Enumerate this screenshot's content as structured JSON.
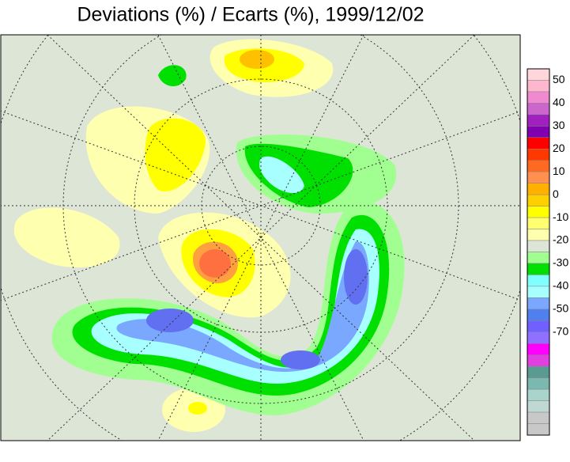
{
  "header": {
    "title": "Deviations (%) / Ecarts (%), 1999/12/02"
  },
  "colorbar": {
    "ticks": [
      50,
      40,
      30,
      20,
      10,
      0,
      -10,
      -20,
      -30,
      -40,
      -50,
      -70
    ],
    "colors": [
      "#ffd6dc",
      "#ffb6cf",
      "#f08ad0",
      "#cc66cc",
      "#a020c0",
      "#8000b0",
      "#ff0000",
      "#ff3800",
      "#ff6a20",
      "#ff9050",
      "#ffb000",
      "#ffd000",
      "#ffff00",
      "#ffff70",
      "#ffffb0",
      "#dde5d6",
      "#a0ff90",
      "#00e000",
      "#80ffff",
      "#a8ffff",
      "#7aa8ff",
      "#5080f0",
      "#7060ff",
      "#9070ff",
      "#ff00ff",
      "#e040e0",
      "#5a9a90",
      "#7ab8b0",
      "#a8d4cc",
      "#c0d8d4",
      "#c8c8c8",
      "#c8c8c8"
    ]
  }
}
